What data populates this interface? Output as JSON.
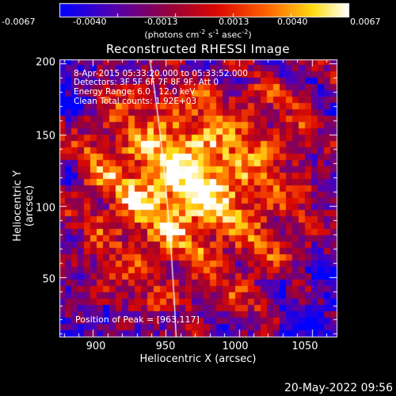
{
  "colorbar": {
    "ticks": [
      "-0.0067",
      "-0.0040",
      "-0.0013",
      "0.0013",
      "0.0040",
      "0.0067"
    ],
    "units_parts": [
      "(photons cm",
      "-2",
      " s",
      "-1",
      " asec",
      "-2",
      ")"
    ]
  },
  "plot": {
    "title": "Reconstructed RHESSI Image",
    "xlabel": "Heliocentric X (arcsec)",
    "ylabel": "Heliocentric Y (arcsec)",
    "xticks": [
      "900",
      "950",
      "1000",
      "1050"
    ],
    "yticks": [
      "200",
      "150",
      "100",
      "50"
    ]
  },
  "info_lines": [
    "8-Apr-2015 05:33:20.000 to 05:33:52.000",
    "Detectors: 3F 5F 6F 7F 8F 9F, Att 0",
    "Energy Range: 6.0 - 12.0 keV",
    "Clean     Total counts: 1.92E+03"
  ],
  "peak_text": "Position of Peak = [963,117]",
  "timestamp": "20-May-2022 09:56",
  "chart_data": {
    "type": "heatmap",
    "title": "Reconstructed RHESSI Image",
    "xlabel": "Heliocentric X (arcsec)",
    "ylabel": "Heliocentric Y (arcsec)",
    "xlim": [
      877,
      1067
    ],
    "ylim": [
      8,
      203
    ],
    "zlim": [
      -0.0067,
      0.0067
    ],
    "colorbar_units": "(photons cm-2 s-1 asec-2)",
    "peak": [
      963,
      117
    ],
    "colormap": "blue-purple-red-orange-yellow-white"
  }
}
